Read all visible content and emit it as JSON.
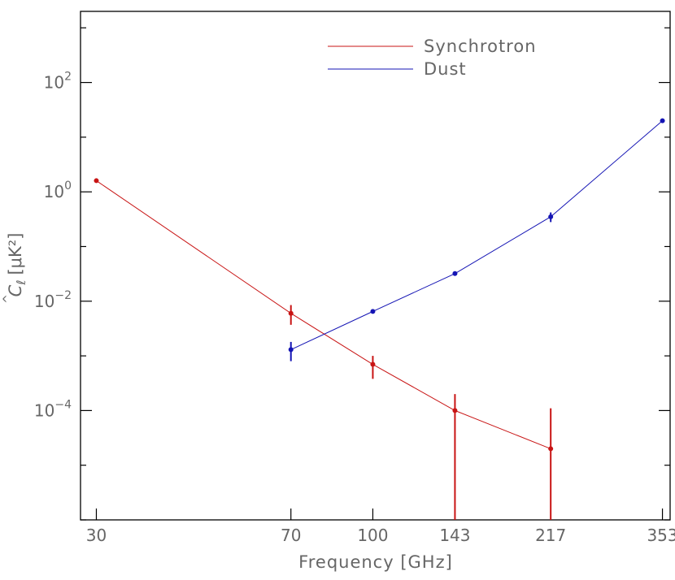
{
  "chart_data": {
    "type": "line",
    "xlabel": "Frequency [GHz]",
    "ylabel_main": "C",
    "ylabel_sub": "ℓ",
    "ylabel_units": "[μK²]",
    "xscale": "log",
    "yscale": "log",
    "xlim": [
      28,
      365
    ],
    "ylim": [
      1e-06,
      2000
    ],
    "xticks": [
      {
        "value": 30,
        "label": "30"
      },
      {
        "value": 70,
        "label": "70"
      },
      {
        "value": 100,
        "label": "100"
      },
      {
        "value": 143,
        "label": "143"
      },
      {
        "value": 217,
        "label": "217"
      },
      {
        "value": 353,
        "label": "353"
      }
    ],
    "yticks": [
      {
        "value": 0.0001,
        "base": "10",
        "exp": "−4"
      },
      {
        "value": 0.01,
        "base": "10",
        "exp": "−2"
      },
      {
        "value": 1,
        "base": "10",
        "exp": "0"
      },
      {
        "value": 100,
        "base": "10",
        "exp": "2"
      }
    ],
    "grid": false,
    "legend_position": "top-center",
    "series": [
      {
        "name": "Synchrotron",
        "color": "#c81414",
        "points": [
          {
            "x": 30,
            "y": 1.6,
            "ylo": 1.5,
            "yhi": 1.7
          },
          {
            "x": 70,
            "y": 0.006,
            "ylo": 0.0037,
            "yhi": 0.0085
          },
          {
            "x": 100,
            "y": 0.0007,
            "ylo": 0.00038,
            "yhi": 0.001
          },
          {
            "x": 143,
            "y": 0.0001,
            "ylo": 1e-06,
            "yhi": 0.0002
          },
          {
            "x": 217,
            "y": 2e-05,
            "ylo": 1e-06,
            "yhi": 0.00011
          }
        ]
      },
      {
        "name": "Dust",
        "color": "#1414b4",
        "points": [
          {
            "x": 70,
            "y": 0.0013,
            "ylo": 0.0008,
            "yhi": 0.0018
          },
          {
            "x": 100,
            "y": 0.0065,
            "ylo": 0.006,
            "yhi": 0.007
          },
          {
            "x": 143,
            "y": 0.032,
            "ylo": 0.03,
            "yhi": 0.034
          },
          {
            "x": 217,
            "y": 0.35,
            "ylo": 0.28,
            "yhi": 0.42
          },
          {
            "x": 353,
            "y": 20,
            "ylo": 19,
            "yhi": 21
          }
        ]
      }
    ]
  }
}
